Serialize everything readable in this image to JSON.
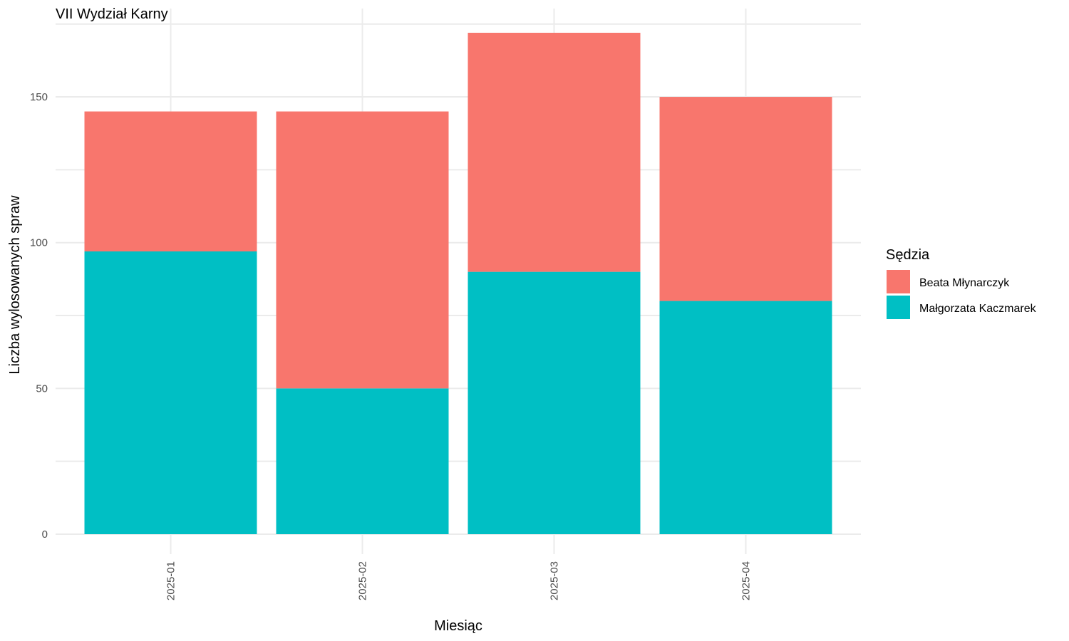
{
  "chart_data": {
    "type": "bar",
    "stacked": true,
    "title": "VII Wydział Karny",
    "xlabel": "Miesiąc",
    "ylabel": "Liczba wylosowanych spraw",
    "categories": [
      "2025-01",
      "2025-02",
      "2025-03",
      "2025-04"
    ],
    "ylim": [
      0,
      180
    ],
    "yticks": [
      0,
      50,
      100,
      150
    ],
    "grid": true,
    "legend": {
      "title": "Sędzia",
      "position": "right"
    },
    "series": [
      {
        "name": "Małgorzata Kaczmarek",
        "color": "#00BFC4",
        "values": [
          97,
          50,
          90,
          80
        ]
      },
      {
        "name": "Beata Młynarczyk",
        "color": "#F8766D",
        "values": [
          48,
          95,
          82,
          70
        ]
      }
    ],
    "legend_order": [
      "Beata Młynarczyk",
      "Małgorzata Kaczmarek"
    ]
  }
}
